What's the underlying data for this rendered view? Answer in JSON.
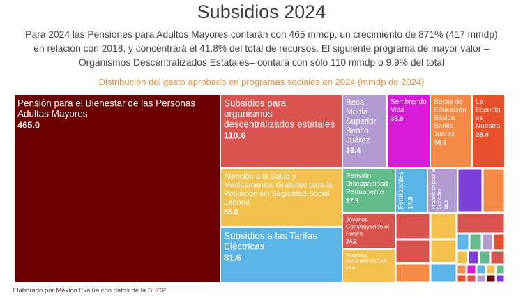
{
  "header": {
    "title": "Subsidios 2024",
    "subtitle": "Para 2024 las Pensiones para Adultos Mayores contarán con 465 mmdp, un crecimiento de 871% (417 mmdp) en relación con 2018, y concentrará el 41.8% del total de recursos. El siguiente programa de mayor valor –Organismos Descentralizados Estatales– contará con sólo 110 mmdp o 9.9% del total"
  },
  "footer": {
    "source": "Elaborado por México Evalúa con datos de la SHCP"
  },
  "chart_data": {
    "type": "treemap",
    "title": "Distribución del gasto aprobado en programas sociales en 2024 (mmdp de 2024)",
    "items": [
      {
        "label": "Pensión para el Bienestar de las Personas Adultas Mayores",
        "value": 465.0,
        "value_label": "465.0",
        "color": "#6b0000"
      },
      {
        "label": "Subsidios para organismos descentralizados estatales",
        "value": 110.6,
        "value_label": "110.6",
        "color": "#d9534f"
      },
      {
        "label": "Atención a la Salud y Medicamentos Gratuitos para la Población sin Seguridad Social Laboral",
        "value": 85.8,
        "value_label": "85.8",
        "color": "#f2c14e"
      },
      {
        "label": "Subsidios a las Tarifas Eléctricas",
        "value": 81.6,
        "value_label": "81.6",
        "color": "#5ab4e6"
      },
      {
        "label": "Beca Media Superior Benito Juárez",
        "value": 39.4,
        "value_label": "39.4",
        "color": "#b29bd0"
      },
      {
        "label": "Sembrando Vida",
        "value": 38.9,
        "value_label": "38.9",
        "color": "#d61ad8"
      },
      {
        "label": "Becas de Educación Básica Benito Juárez",
        "value": 36.6,
        "value_label": "36.6",
        "color": "#f48a43"
      },
      {
        "label": "La Escuela es Nuestra",
        "value": 28.4,
        "value_label": "28.4",
        "color": "#e8502b"
      },
      {
        "label": "Pensión Discapacidad Permanente",
        "value": 27.9,
        "value_label": "27.9",
        "color": "#62bb8a"
      },
      {
        "label": "Fertilizantes",
        "value": 17.5,
        "value_label": "17.5",
        "color": "#5ab4e6"
      },
      {
        "label": "Producción para el Bienestar",
        "value": 16.3,
        "value_label": "16.3",
        "color": "#b29bd0"
      },
      {
        "label": "Jóvenes Construyendo el Futuro",
        "value": 24.2,
        "value_label": "24.2",
        "color": "#d9534f"
      },
      {
        "label": "Programa IMSS-BIENESTAR",
        "value": 21.6,
        "value_label": "21.6",
        "color": "#f2c14e"
      }
    ],
    "small_tile_colors": [
      "#7d3fd9",
      "#d9534f",
      "#f2c14e",
      "#5ab4e6",
      "#62bb8a",
      "#b29bd0",
      "#e8502b",
      "#f48a43",
      "#d61ad8",
      "#6b0000"
    ]
  }
}
